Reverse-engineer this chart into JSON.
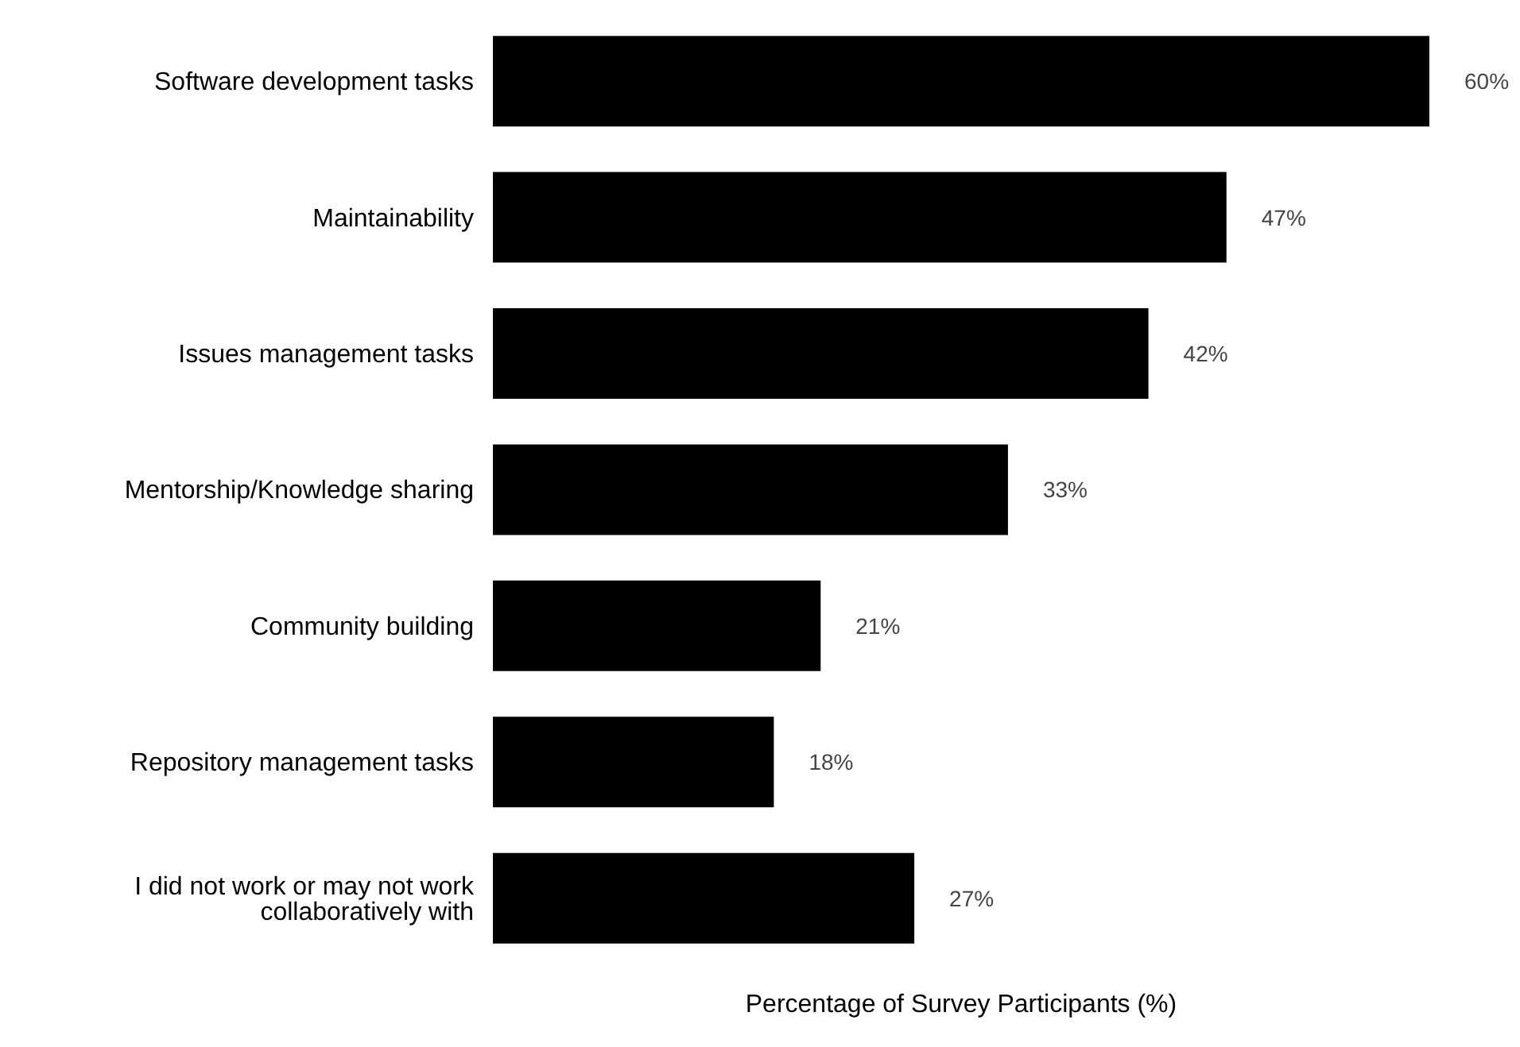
{
  "chart_data": {
    "type": "bar",
    "orientation": "horizontal",
    "xlabel": "Percentage of Survey Participants (%)",
    "categories": [
      "Software development tasks",
      "Maintainability",
      "Issues management tasks",
      "Mentorship/Knowledge sharing",
      "Community building",
      "Repository management tasks",
      "I did not work or may not work collaboratively with"
    ],
    "values": [
      60,
      47,
      42,
      33,
      21,
      18,
      27
    ],
    "value_labels": [
      "60%",
      "47%",
      "42%",
      "33%",
      "21%",
      "18%",
      "27%"
    ],
    "color": "#000000"
  }
}
